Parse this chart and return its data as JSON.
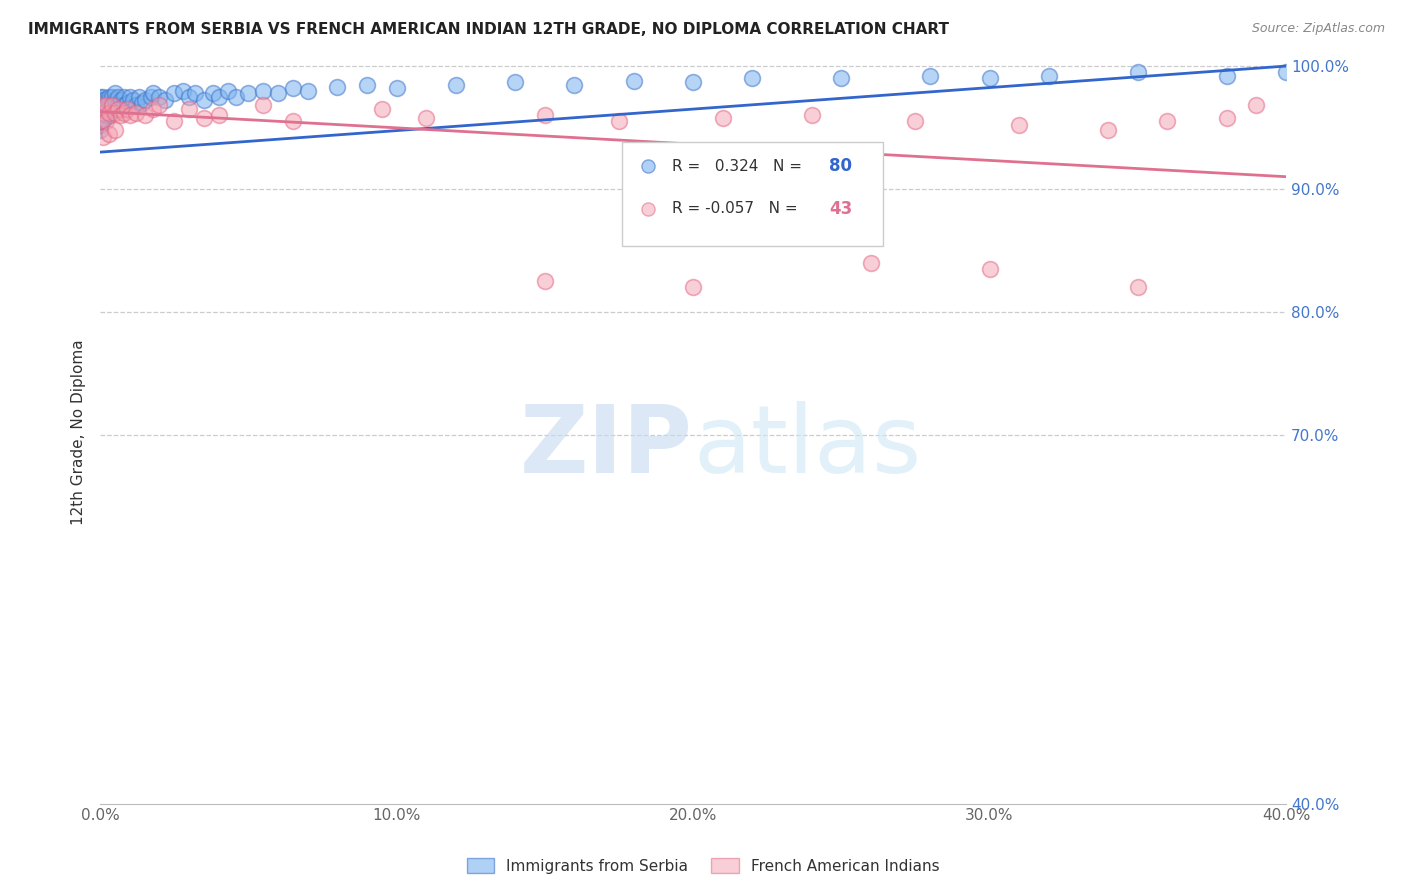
{
  "title": "IMMIGRANTS FROM SERBIA VS FRENCH AMERICAN INDIAN 12TH GRADE, NO DIPLOMA CORRELATION CHART",
  "source": "Source: ZipAtlas.com",
  "ylabel": "12th Grade, No Diploma",
  "xlim": [
    0.0,
    0.4
  ],
  "ylim": [
    0.4,
    1.005
  ],
  "series1_label": "Immigrants from Serbia",
  "series2_label": "French American Indians",
  "series1_R": 0.324,
  "series1_N": 80,
  "series2_R": -0.057,
  "series2_N": 43,
  "series1_color": "#7ab3ef",
  "series2_color": "#f4a0b0",
  "series1_edge": "#4477cc",
  "series2_edge": "#e06080",
  "trendline1_color": "#3366cc",
  "trendline2_color": "#e07090",
  "watermark": "ZIPatlas",
  "grid_color": "#cccccc",
  "right_tick_color": "#4477cc",
  "title_color": "#222222",
  "source_color": "#888888",
  "legend_text_color": "#333333",
  "legend_border_color": "#cccccc",
  "bottom_tick_color": "#666666",
  "ylabel_color": "#333333",
  "serbia_x": [
    0.0,
    0.0,
    0.0,
    0.0,
    0.0,
    0.0,
    0.0,
    0.0,
    0.0,
    0.0,
    0.001,
    0.001,
    0.001,
    0.001,
    0.001,
    0.001,
    0.001,
    0.001,
    0.002,
    0.002,
    0.002,
    0.002,
    0.002,
    0.003,
    0.003,
    0.003,
    0.003,
    0.004,
    0.004,
    0.004,
    0.005,
    0.005,
    0.005,
    0.006,
    0.006,
    0.007,
    0.007,
    0.008,
    0.008,
    0.009,
    0.01,
    0.011,
    0.012,
    0.013,
    0.014,
    0.015,
    0.017,
    0.018,
    0.02,
    0.022,
    0.025,
    0.028,
    0.03,
    0.032,
    0.035,
    0.038,
    0.04,
    0.043,
    0.046,
    0.05,
    0.055,
    0.06,
    0.065,
    0.07,
    0.08,
    0.09,
    0.1,
    0.12,
    0.14,
    0.16,
    0.18,
    0.2,
    0.22,
    0.25,
    0.28,
    0.3,
    0.32,
    0.35,
    0.38,
    0.4
  ],
  "serbia_y": [
    0.96,
    0.968,
    0.955,
    0.972,
    0.948,
    0.963,
    0.97,
    0.958,
    0.975,
    0.952,
    0.965,
    0.97,
    0.958,
    0.972,
    0.96,
    0.968,
    0.955,
    0.975,
    0.968,
    0.973,
    0.96,
    0.965,
    0.97,
    0.972,
    0.968,
    0.975,
    0.96,
    0.975,
    0.968,
    0.965,
    0.972,
    0.978,
    0.968,
    0.975,
    0.968,
    0.972,
    0.965,
    0.975,
    0.968,
    0.97,
    0.975,
    0.972,
    0.968,
    0.975,
    0.97,
    0.972,
    0.975,
    0.978,
    0.975,
    0.972,
    0.978,
    0.98,
    0.975,
    0.978,
    0.972,
    0.978,
    0.975,
    0.98,
    0.975,
    0.978,
    0.98,
    0.978,
    0.982,
    0.98,
    0.983,
    0.985,
    0.982,
    0.985,
    0.987,
    0.985,
    0.988,
    0.987,
    0.99,
    0.99,
    0.992,
    0.99,
    0.992,
    0.995,
    0.992,
    0.995
  ],
  "french_x": [
    0.0,
    0.0,
    0.001,
    0.001,
    0.002,
    0.002,
    0.003,
    0.003,
    0.004,
    0.005,
    0.005,
    0.006,
    0.007,
    0.008,
    0.009,
    0.01,
    0.012,
    0.015,
    0.018,
    0.02,
    0.025,
    0.03,
    0.035,
    0.04,
    0.055,
    0.065,
    0.095,
    0.11,
    0.15,
    0.175,
    0.21,
    0.24,
    0.275,
    0.31,
    0.34,
    0.36,
    0.38,
    0.39,
    0.15,
    0.2,
    0.26,
    0.3,
    0.35
  ],
  "french_y": [
    0.968,
    0.955,
    0.962,
    0.942,
    0.968,
    0.955,
    0.962,
    0.945,
    0.968,
    0.962,
    0.948,
    0.965,
    0.96,
    0.962,
    0.965,
    0.96,
    0.962,
    0.96,
    0.965,
    0.968,
    0.955,
    0.965,
    0.958,
    0.96,
    0.968,
    0.955,
    0.965,
    0.958,
    0.96,
    0.955,
    0.958,
    0.96,
    0.955,
    0.952,
    0.948,
    0.955,
    0.958,
    0.968,
    0.825,
    0.82,
    0.84,
    0.835,
    0.82
  ],
  "trendline1_x0": 0.0,
  "trendline1_y0": 0.93,
  "trendline1_x1": 0.4,
  "trendline1_y1": 1.0,
  "trendline2_x0": 0.0,
  "trendline2_y0": 0.963,
  "trendline2_x1": 0.4,
  "trendline2_y1": 0.91
}
